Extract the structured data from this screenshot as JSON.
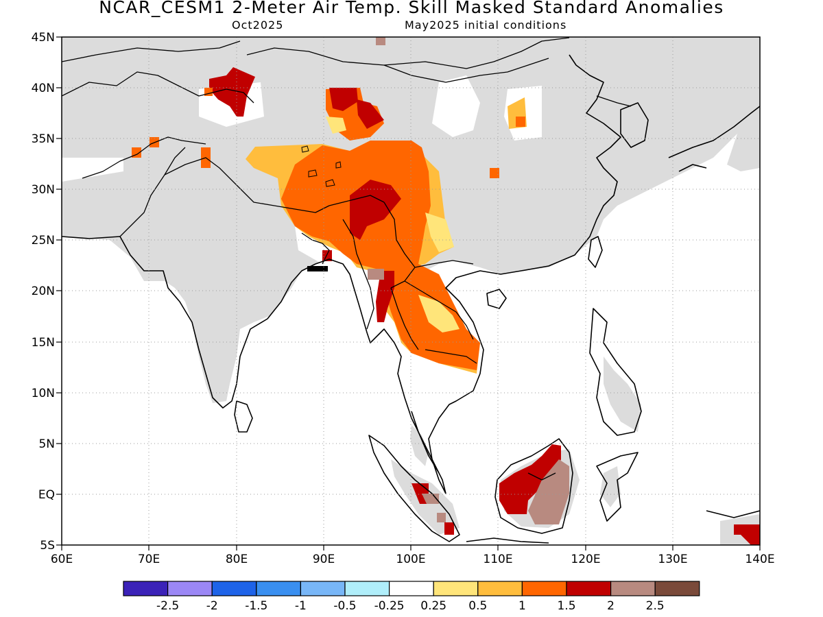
{
  "header": {
    "title": "NCAR_CESM1 2-Meter Air Temp. Skill Masked Standard Anomalies",
    "target_month": "Oct2025",
    "init": "May2025 initial conditions"
  },
  "map": {
    "lon_range": [
      60,
      140
    ],
    "lat_range": [
      -5,
      45
    ],
    "grid": "dotted",
    "lat_labels": [
      "45N",
      "40N",
      "35N",
      "30N",
      "25N",
      "20N",
      "15N",
      "10N",
      "5N",
      "EQ",
      "5S"
    ],
    "lon_labels": [
      "60E",
      "70E",
      "80E",
      "90E",
      "100E",
      "110E",
      "120E",
      "130E",
      "140E"
    ]
  },
  "colorbar": {
    "colors": [
      "#3b22b8",
      "#9b87f5",
      "#1e63e8",
      "#3a8ff0",
      "#78b6f7",
      "#b0eefa",
      "#ffffff",
      "#ffe57a",
      "#ffbd3d",
      "#ff6600",
      "#c00000",
      "#b88a80",
      "#7a4a3a"
    ],
    "labels": [
      "-2.5",
      "-2",
      "-1.5",
      "-1",
      "-0.5",
      "-0.25",
      "0.25",
      "0.5",
      "1",
      "1.5",
      "2",
      "2.5"
    ]
  },
  "palette": {
    "masked": "#dcdcdc",
    "neutral": "#ffffff",
    "c05": "#ffe57a",
    "c1": "#ffbd3d",
    "c15": "#ff6600",
    "c2": "#c00000",
    "c25": "#b88a80"
  }
}
